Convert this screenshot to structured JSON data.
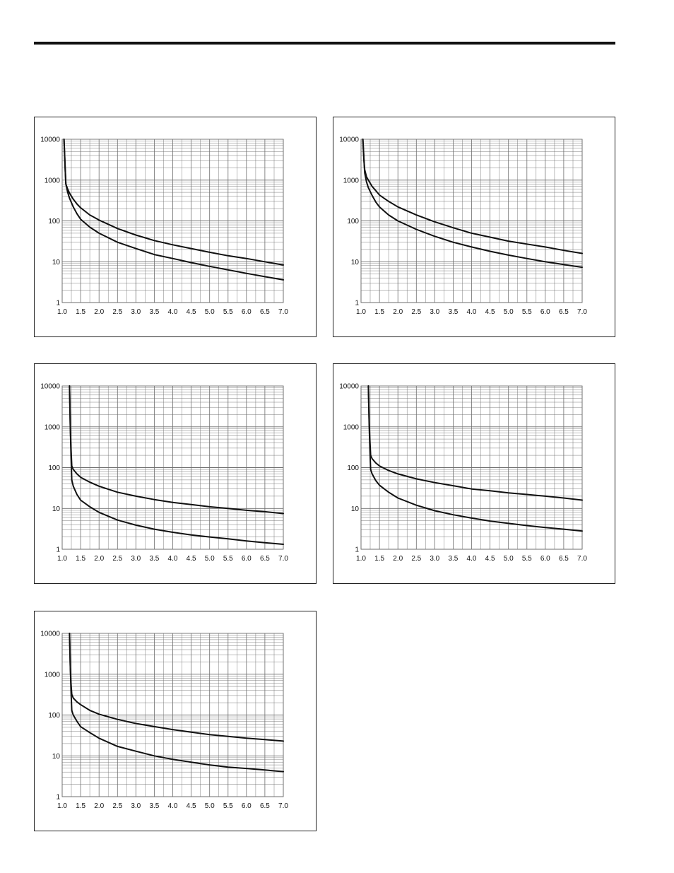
{
  "colors": {
    "line": "#111111",
    "grid": "#6e6e6e",
    "frame": "#222222"
  },
  "chart_data": [
    {
      "type": "line",
      "x_ticks": [
        "1.0",
        "1.5",
        "2.0",
        "2.5",
        "3.0",
        "3.5",
        "4.0",
        "4.5",
        "5.0",
        "5.5",
        "6.0",
        "6.5",
        "7.0"
      ],
      "y_ticks": [
        "1",
        "10",
        "100",
        "1000",
        "10000"
      ],
      "xlim": [
        1.0,
        7.0
      ],
      "ylim": [
        1,
        10000
      ],
      "yscale": "log",
      "grid": true,
      "series": [
        {
          "x": [
            1.05,
            1.08,
            1.1,
            1.15,
            1.2,
            1.3,
            1.4,
            1.5,
            1.75,
            2.0,
            2.5,
            3.0,
            3.5,
            4.0,
            4.5,
            5.0,
            5.5,
            6.0,
            6.5,
            7.0
          ],
          "y": [
            10000,
            2000,
            800,
            600,
            480,
            340,
            260,
            210,
            140,
            105,
            65,
            45,
            33,
            26,
            21,
            17,
            14,
            12,
            10,
            8.3
          ]
        },
        {
          "x": [
            1.05,
            1.08,
            1.1,
            1.15,
            1.2,
            1.3,
            1.4,
            1.5,
            1.75,
            2.0,
            2.5,
            3.0,
            3.5,
            4.0,
            4.5,
            5.0,
            5.5,
            6.0,
            6.5,
            7.0
          ],
          "y": [
            10000,
            2000,
            800,
            500,
            360,
            220,
            150,
            110,
            70,
            50,
            30,
            21,
            15,
            12,
            9.5,
            7.7,
            6.3,
            5.2,
            4.3,
            3.6
          ]
        }
      ]
    },
    {
      "type": "line",
      "x_ticks": [
        "1.0",
        "1.5",
        "2.0",
        "2.5",
        "3.0",
        "3.5",
        "4.0",
        "4.5",
        "5.0",
        "5.5",
        "6.0",
        "6.5",
        "7.0"
      ],
      "y_ticks": [
        "1",
        "10",
        "100",
        "1000",
        "10000"
      ],
      "xlim": [
        1.0,
        7.0
      ],
      "ylim": [
        1,
        10000
      ],
      "yscale": "log",
      "grid": true,
      "series": [
        {
          "x": [
            1.05,
            1.08,
            1.1,
            1.15,
            1.2,
            1.3,
            1.4,
            1.5,
            1.75,
            2.0,
            2.5,
            3.0,
            3.5,
            4.0,
            4.5,
            5.0,
            5.5,
            6.0,
            6.5,
            7.0
          ],
          "y": [
            10000,
            3000,
            1800,
            1200,
            1000,
            700,
            550,
            430,
            300,
            220,
            140,
            95,
            68,
            50,
            40,
            32,
            27,
            23,
            19,
            16
          ]
        },
        {
          "x": [
            1.05,
            1.08,
            1.1,
            1.15,
            1.2,
            1.3,
            1.4,
            1.5,
            1.75,
            2.0,
            2.5,
            3.0,
            3.5,
            4.0,
            4.5,
            5.0,
            5.5,
            6.0,
            6.5,
            7.0
          ],
          "y": [
            10000,
            3000,
            1500,
            900,
            650,
            420,
            290,
            220,
            140,
            100,
            62,
            42,
            30,
            23,
            18,
            14.5,
            12,
            10,
            8.5,
            7.3
          ]
        }
      ]
    },
    {
      "type": "line",
      "x_ticks": [
        "1.0",
        "1.5",
        "2.0",
        "2.5",
        "3.0",
        "3.5",
        "4.0",
        "4.5",
        "5.0",
        "5.5",
        "6.0",
        "6.5",
        "7.0"
      ],
      "y_ticks": [
        "1",
        "10",
        "100",
        "1000",
        "10000"
      ],
      "xlim": [
        1.0,
        7.0
      ],
      "ylim": [
        1,
        10000
      ],
      "yscale": "log",
      "grid": true,
      "series": [
        {
          "x": [
            1.2,
            1.22,
            1.24,
            1.26,
            1.3,
            1.4,
            1.5,
            1.75,
            2.0,
            2.5,
            3.0,
            3.5,
            4.0,
            4.5,
            5.0,
            5.5,
            6.0,
            6.5,
            7.0
          ],
          "y": [
            10000,
            1000,
            300,
            110,
            90,
            70,
            58,
            44,
            35,
            25,
            20,
            16.5,
            14,
            12.5,
            11,
            10,
            9,
            8.3,
            7.5
          ]
        },
        {
          "x": [
            1.2,
            1.22,
            1.24,
            1.26,
            1.3,
            1.4,
            1.5,
            1.75,
            2.0,
            2.5,
            3.0,
            3.5,
            4.0,
            4.5,
            5.0,
            5.5,
            6.0,
            6.5,
            7.0
          ],
          "y": [
            10000,
            1000,
            200,
            50,
            35,
            22,
            16,
            11,
            8,
            5.2,
            3.9,
            3.1,
            2.6,
            2.25,
            2,
            1.8,
            1.6,
            1.45,
            1.32
          ]
        }
      ]
    },
    {
      "type": "line",
      "x_ticks": [
        "1.0",
        "1.5",
        "2.0",
        "2.5",
        "3.0",
        "3.5",
        "4.0",
        "4.5",
        "5.0",
        "5.5",
        "6.0",
        "6.5",
        "7.0"
      ],
      "y_ticks": [
        "1",
        "10",
        "100",
        "1000",
        "10000"
      ],
      "xlim": [
        1.0,
        7.0
      ],
      "ylim": [
        1,
        10000
      ],
      "yscale": "log",
      "grid": true,
      "series": [
        {
          "x": [
            1.2,
            1.22,
            1.24,
            1.26,
            1.3,
            1.4,
            1.5,
            1.75,
            2.0,
            2.5,
            3.0,
            3.5,
            4.0,
            4.5,
            5.0,
            5.5,
            6.0,
            6.5,
            7.0
          ],
          "y": [
            10000,
            1500,
            500,
            200,
            165,
            130,
            110,
            85,
            70,
            53,
            43,
            36,
            30,
            27,
            24,
            22,
            20,
            18,
            16
          ]
        },
        {
          "x": [
            1.2,
            1.22,
            1.24,
            1.26,
            1.3,
            1.4,
            1.5,
            1.75,
            2.0,
            2.5,
            3.0,
            3.5,
            4.0,
            4.5,
            5.0,
            5.5,
            6.0,
            6.5,
            7.0
          ],
          "y": [
            10000,
            1200,
            300,
            90,
            70,
            48,
            37,
            25,
            18,
            12,
            8.8,
            7,
            5.8,
            4.9,
            4.3,
            3.8,
            3.4,
            3.1,
            2.8
          ]
        }
      ]
    },
    {
      "type": "line",
      "x_ticks": [
        "1.0",
        "1.5",
        "2.0",
        "2.5",
        "3.0",
        "3.5",
        "4.0",
        "4.5",
        "5.0",
        "5.5",
        "6.0",
        "6.5",
        "7.0"
      ],
      "y_ticks": [
        "1",
        "10",
        "100",
        "1000",
        "10000"
      ],
      "xlim": [
        1.0,
        7.0
      ],
      "ylim": [
        1,
        10000
      ],
      "yscale": "log",
      "grid": true,
      "series": [
        {
          "x": [
            1.2,
            1.22,
            1.24,
            1.26,
            1.3,
            1.4,
            1.5,
            1.75,
            2.0,
            2.5,
            3.0,
            3.5,
            4.0,
            4.5,
            5.0,
            5.5,
            6.0,
            6.5,
            7.0
          ],
          "y": [
            10000,
            1500,
            600,
            320,
            260,
            210,
            180,
            130,
            105,
            78,
            62,
            52,
            44,
            38,
            33,
            30,
            27,
            25,
            23
          ]
        },
        {
          "x": [
            1.2,
            1.22,
            1.24,
            1.26,
            1.3,
            1.4,
            1.5,
            1.75,
            2.0,
            2.5,
            3.0,
            3.5,
            4.0,
            4.5,
            5.0,
            5.5,
            6.0,
            6.5,
            7.0
          ],
          "y": [
            10000,
            1500,
            400,
            130,
            100,
            70,
            52,
            37,
            27,
            17,
            13,
            10,
            8.2,
            7,
            6,
            5.3,
            4.9,
            4.5,
            4.1
          ]
        }
      ]
    }
  ]
}
